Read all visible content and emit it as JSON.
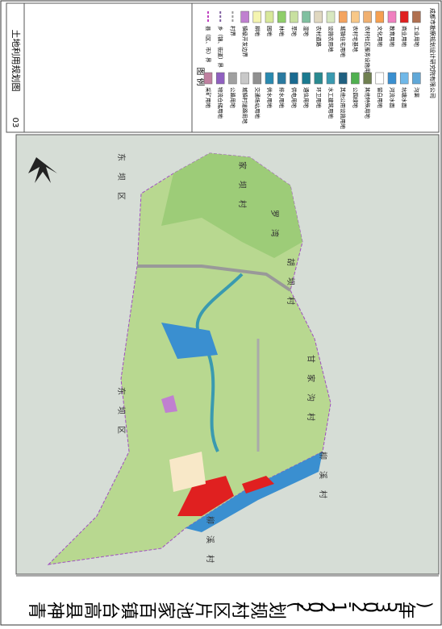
{
  "header": {
    "number": "03",
    "title": "土地利用规划图"
  },
  "title": "青神县高台镇百家池片区村规划(2021-2035年)",
  "legend": {
    "title": "图 例",
    "columns": [
      [
        {
          "label": "县（区、市）界",
          "color": "#c040c0"
        },
        {
          "label": "乡（镇、街道）界",
          "color": "#8060a0"
        },
        {
          "label": "村界",
          "color": "#999999"
        },
        {
          "label": "镇级开发边界",
          "color": "#c080d0"
        },
        {
          "label": "耕地",
          "color": "#f5f5b0"
        },
        {
          "label": "园地",
          "color": "#d8e89a"
        },
        {
          "label": "林地",
          "color": "#8fce6a"
        },
        {
          "label": "草地",
          "color": "#c8e0a0"
        },
        {
          "label": "湿地",
          "color": "#80c0a0"
        },
        {
          "label": "农村道路",
          "color": "#e0d8c0"
        },
        {
          "label": "设施农用地",
          "color": "#d8e8c0"
        },
        {
          "label": "城镇住宅用地",
          "color": "#f4a460"
        },
        {
          "label": "农村宅基地",
          "color": "#f8c888"
        },
        {
          "label": "农村社区服务设施用地",
          "color": "#f0b070"
        },
        {
          "label": "文化用地",
          "color": "#f6a050"
        },
        {
          "label": "教育用地",
          "color": "#f080c0"
        },
        {
          "label": "商业用地",
          "color": "#e02020"
        },
        {
          "label": "工业用地",
          "color": "#b07050"
        }
      ],
      [
        {
          "label": "采矿用地",
          "color": "#c080a0"
        },
        {
          "label": "物流仓储用地",
          "color": "#9060c0"
        },
        {
          "label": "公路用地",
          "color": "#a0a0a0"
        },
        {
          "label": "城镇村道路用地",
          "color": "#c8c8c8"
        },
        {
          "label": "交通场站用地",
          "color": "#909090"
        },
        {
          "label": "供水用地",
          "color": "#2a8ab0"
        },
        {
          "label": "排水用地",
          "color": "#2a7aa0"
        },
        {
          "label": "供电用地",
          "color": "#1a6a90"
        },
        {
          "label": "通信用地",
          "color": "#1a7a90"
        },
        {
          "label": "环卫用地",
          "color": "#2a8a90"
        },
        {
          "label": "水工建筑用地",
          "color": "#3a9ab0"
        },
        {
          "label": "其他公用设施用地",
          "color": "#206080"
        },
        {
          "label": "公园绿地",
          "color": "#50b050"
        },
        {
          "label": "其他特殊用地",
          "color": "#708050"
        },
        {
          "label": "留白用地",
          "color": "#ffffff"
        },
        {
          "label": "河流水面",
          "color": "#3a8fd0"
        },
        {
          "label": "坑塘水面",
          "color": "#70b8e8"
        },
        {
          "label": "沟渠",
          "color": "#60a8d8"
        }
      ]
    ]
  },
  "company": "成都市勘察规划设计研究院有限公司",
  "map_labels": [
    "东坝区",
    "家坝村",
    "罗湾",
    "胡坝村",
    "甘家沟村",
    "柳溪村",
    "东坝区",
    "柳溪村"
  ]
}
